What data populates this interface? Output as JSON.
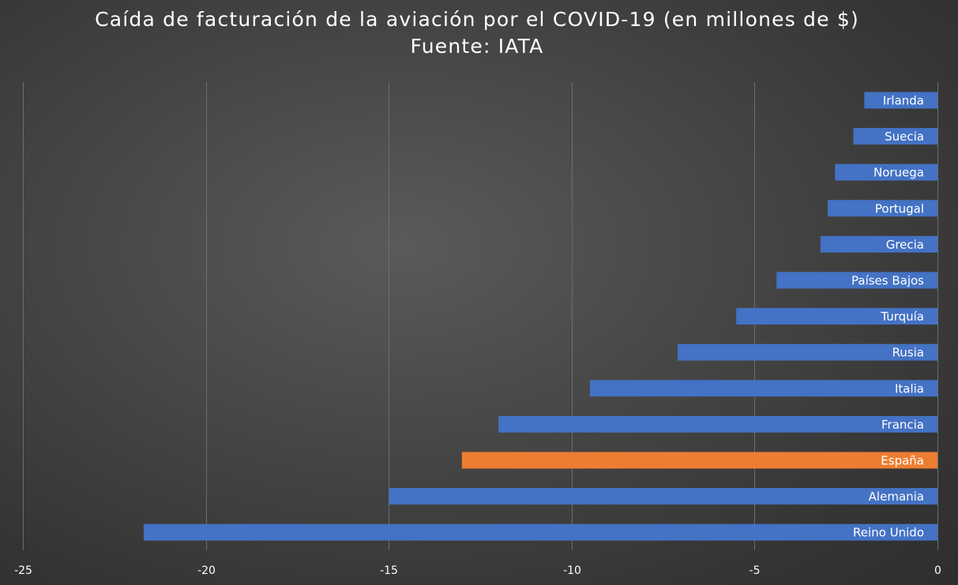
{
  "chart_data": {
    "type": "bar",
    "orientation": "horizontal",
    "title": "Caída de facturación de la aviación por el COVID-19 (en millones de $)",
    "subtitle": "Fuente: IATA",
    "xlabel": "",
    "ylabel": "",
    "xlim": [
      -25,
      0
    ],
    "xticks": [
      -25,
      -20,
      -15,
      -10,
      -5,
      0
    ],
    "xtick_labels": [
      "-25",
      "-20",
      "-15",
      "-10",
      "-5",
      "0"
    ],
    "grid": true,
    "categories": [
      "Irlanda",
      "Suecia",
      "Noruega",
      "Portugal",
      "Grecia",
      "Países Bajos",
      "Turquía",
      "Rusia",
      "Italia",
      "Francia",
      "España",
      "Alemania",
      "Reino Unido"
    ],
    "values": [
      -2.0,
      -2.3,
      -2.8,
      -3.0,
      -3.2,
      -4.4,
      -5.5,
      -7.1,
      -9.5,
      -12.0,
      -13.0,
      -15.0,
      -21.7
    ],
    "colors": {
      "default": "#4472c4",
      "highlight": "#ed7d31",
      "highlight_category": "España"
    }
  }
}
